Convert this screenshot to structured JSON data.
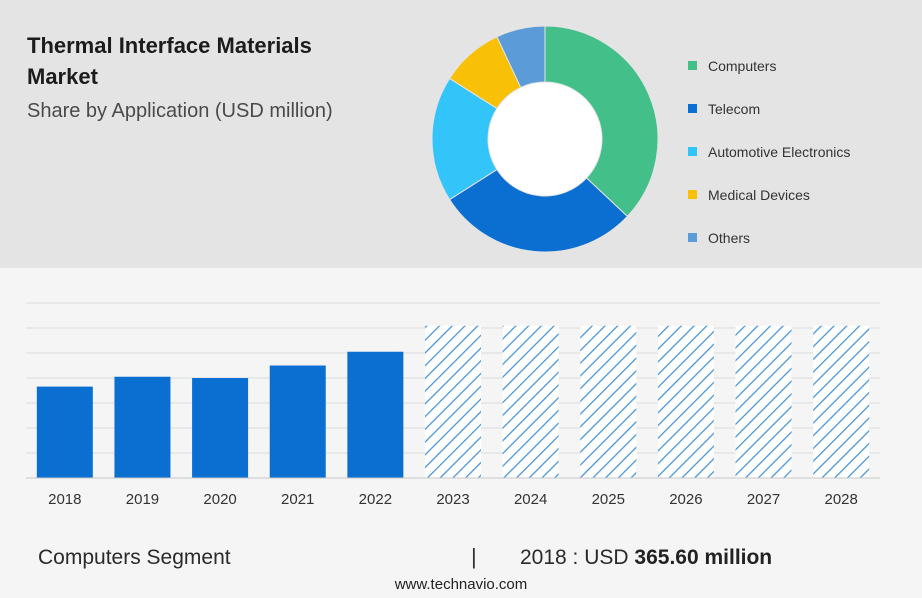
{
  "header": {
    "title": "Thermal Interface Materials Market",
    "subtitle": "Share by Application (USD million)"
  },
  "colors": {
    "computers": "#43bf8a",
    "telecom": "#0a6fd1",
    "automotive": "#33c4fa",
    "medical": "#f9c008",
    "others": "#5b9bd8",
    "bar": "#0a6fd1",
    "forecast_hatch": "#4a96d8"
  },
  "chart_data": [
    {
      "type": "pie",
      "variant": "donut",
      "legend_position": "right",
      "slices": [
        {
          "name": "Computers",
          "value": 37,
          "color": "#43bf8a"
        },
        {
          "name": "Telecom",
          "value": 29,
          "color": "#0a6fd1"
        },
        {
          "name": "Automotive Electronics",
          "value": 18,
          "color": "#33c4fa"
        },
        {
          "name": "Medical Devices",
          "value": 9,
          "color": "#f9c008"
        },
        {
          "name": "Others",
          "value": 7,
          "color": "#5b9bd8"
        }
      ]
    },
    {
      "type": "bar",
      "categories": [
        "2018",
        "2019",
        "2020",
        "2021",
        "2022",
        "2023",
        "2024",
        "2025",
        "2026",
        "2027",
        "2028"
      ],
      "values": [
        365.6,
        405,
        400,
        450,
        505,
        609,
        609,
        609,
        609,
        609,
        609
      ],
      "forecast": [
        false,
        false,
        false,
        false,
        false,
        true,
        true,
        true,
        true,
        true,
        true
      ],
      "ylim": [
        0,
        700
      ],
      "grid": true,
      "axis_labels_shown": false
    }
  ],
  "footer": {
    "segment": "Computers Segment",
    "divider": "|",
    "value_prefix": "2018 : USD",
    "value_bold": "365.60 million",
    "url": "www.technavio.com"
  }
}
